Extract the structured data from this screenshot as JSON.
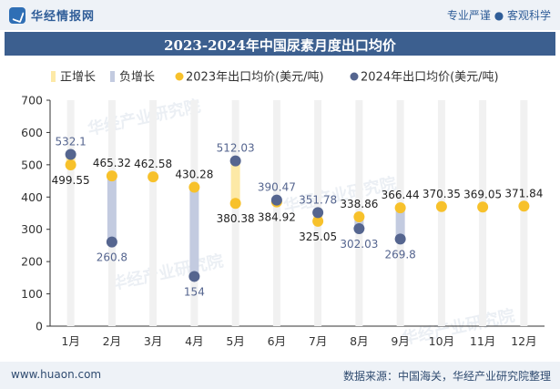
{
  "header": {
    "logo_text": "华经情报网",
    "tagline": "专业严谨 ● 客观科学"
  },
  "chart_data": {
    "type": "bar",
    "title": "2023-2024年中国尿素月度出口均价",
    "categories": [
      "1月",
      "2月",
      "3月",
      "4月",
      "5月",
      "6月",
      "7月",
      "8月",
      "9月",
      "10月",
      "11月",
      "12月"
    ],
    "series": [
      {
        "name": "2023年出口均价(美元/吨)",
        "values": [
          499.55,
          465.32,
          462.58,
          430.28,
          380.38,
          384.92,
          325.05,
          338.86,
          366.44,
          370.35,
          369.05,
          371.84
        ]
      },
      {
        "name": "2024年出口均价(美元/吨)",
        "values": [
          532.1,
          260.8,
          null,
          154,
          512.03,
          390.47,
          351.78,
          302.03,
          269.8,
          null,
          null,
          null
        ]
      }
    ],
    "legend": [
      "正增长",
      "负增长",
      "2023年出口均价(美元/吨)",
      "2024年出口均价(美元/吨)"
    ],
    "legend_position": "top",
    "ylim": [
      0,
      700
    ],
    "yticks": [
      0,
      100,
      200,
      300,
      400,
      500,
      600,
      700
    ],
    "grid": false,
    "colors": {
      "positive": "#fde9a6",
      "negative": "#c3cbe0",
      "track": "#f1f1f1",
      "series_2023": "#f7c12b",
      "series_2024": "#55658f"
    }
  },
  "watermarks": [
    "华经产业研究院",
    "华经产业研究院",
    "华经产业研究院",
    "华经产业研究院"
  ],
  "footer": {
    "website": "www.huaon.com",
    "source": "数据来源：中国海关，华经产业研究院整理"
  }
}
